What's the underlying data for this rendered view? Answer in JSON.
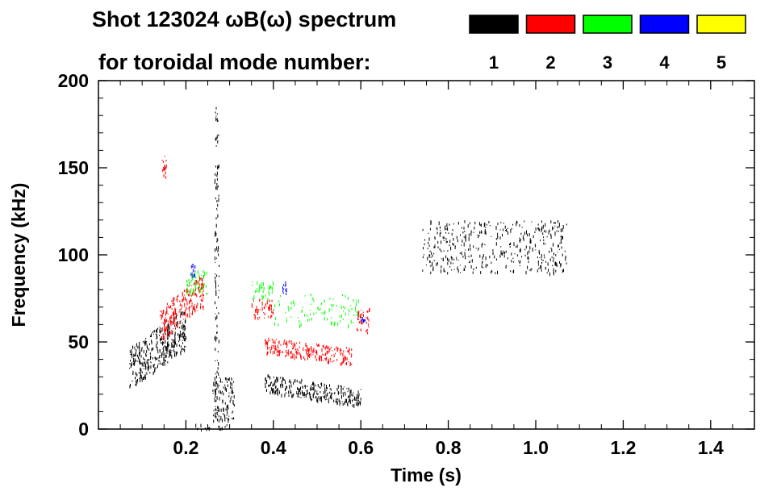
{
  "chart_data": {
    "type": "scatter",
    "title_line1": "Shot 123024 ωB(ω) spectrum",
    "title_line2": "for toroidal mode number:",
    "xlabel": "Time (s)",
    "ylabel": "Frequency (kHz)",
    "xlim": [
      0.0,
      1.5
    ],
    "ylim": [
      0,
      200
    ],
    "x_ticks": [
      "0.2",
      "0.4",
      "0.6",
      "0.8",
      "1.0",
      "1.2",
      "1.4"
    ],
    "x_tick_values": [
      0.2,
      0.4,
      0.6,
      0.8,
      1.0,
      1.2,
      1.4
    ],
    "y_ticks": [
      "0",
      "50",
      "100",
      "150",
      "200"
    ],
    "y_tick_values": [
      0,
      50,
      100,
      150,
      200
    ],
    "grid": false,
    "legend": [
      {
        "label": "1",
        "color": "#000000"
      },
      {
        "label": "2",
        "color": "#ff0000"
      },
      {
        "label": "3",
        "color": "#00ff00"
      },
      {
        "label": "4",
        "color": "#0000ff"
      },
      {
        "label": "5",
        "color": "#ffff00"
      }
    ],
    "series": [
      {
        "name": "1",
        "color": "#000000",
        "blobs": [
          {
            "x": [
              0.07,
              0.2
            ],
            "y": [
              28,
              62
            ],
            "trend": [
              0.07,
              35,
              0.2,
              58
            ],
            "density": 1.0
          },
          {
            "x": [
              0.26,
              0.31
            ],
            "y": [
              5,
              30
            ],
            "density": 1.0
          },
          {
            "x": [
              0.38,
              0.6
            ],
            "y": [
              15,
              30
            ],
            "trend": [
              0.38,
              27,
              0.6,
              18
            ],
            "density": 1.0
          },
          {
            "x": [
              0.74,
              1.07
            ],
            "y": [
              90,
              120
            ],
            "density": 0.5
          },
          {
            "x": [
              0.265,
              0.275
            ],
            "y": [
              0,
              185
            ],
            "density": 0.7
          },
          {
            "x": [
              0.22,
              0.3
            ],
            "y": [
              0,
              3
            ],
            "density": 0.5
          }
        ]
      },
      {
        "name": "2",
        "color": "#ff0000",
        "blobs": [
          {
            "x": [
              0.14,
              0.24
            ],
            "y": [
              58,
              85
            ],
            "trend": [
              0.14,
              60,
              0.24,
              80
            ],
            "density": 1.0
          },
          {
            "x": [
              0.145,
              0.155
            ],
            "y": [
              145,
              158
            ],
            "density": 0.8
          },
          {
            "x": [
              0.35,
              0.4
            ],
            "y": [
              64,
              75
            ],
            "density": 1.0
          },
          {
            "x": [
              0.38,
              0.58
            ],
            "y": [
              38,
              52
            ],
            "trend": [
              0.38,
              48,
              0.58,
              42
            ],
            "density": 1.0
          },
          {
            "x": [
              0.59,
              0.62
            ],
            "y": [
              55,
              70
            ],
            "density": 0.8
          }
        ]
      },
      {
        "name": "3",
        "color": "#00ff00",
        "blobs": [
          {
            "x": [
              0.2,
              0.25
            ],
            "y": [
              78,
              92
            ],
            "density": 0.8
          },
          {
            "x": [
              0.35,
              0.4
            ],
            "y": [
              75,
              85
            ],
            "density": 0.8
          },
          {
            "x": [
              0.4,
              0.6
            ],
            "y": [
              60,
              78
            ],
            "density": 0.3
          }
        ]
      },
      {
        "name": "4",
        "color": "#0000ff",
        "blobs": [
          {
            "x": [
              0.21,
              0.22
            ],
            "y": [
              88,
              95
            ],
            "density": 0.8
          },
          {
            "x": [
              0.42,
              0.43
            ],
            "y": [
              78,
              85
            ],
            "density": 0.8
          },
          {
            "x": [
              0.6,
              0.61
            ],
            "y": [
              62,
              66
            ],
            "density": 0.6
          }
        ]
      },
      {
        "name": "5",
        "color": "#ffff00",
        "blobs": []
      }
    ]
  }
}
